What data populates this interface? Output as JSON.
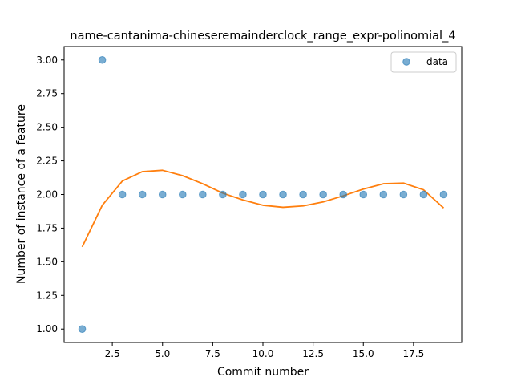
{
  "chart_data": {
    "type": "scatter",
    "title": "name-cantanima-chineseremainderclock_range_expr-polinomial_4",
    "xlabel": "Commit number",
    "ylabel": "Number of instance of a feature",
    "xlim": [
      0.1,
      19.9
    ],
    "ylim": [
      0.9,
      3.1
    ],
    "xticks": [
      "2.5",
      "5.0",
      "7.5",
      "10.0",
      "12.5",
      "15.0",
      "17.5"
    ],
    "yticks": [
      "1.00",
      "1.25",
      "1.50",
      "1.75",
      "2.00",
      "2.25",
      "2.50",
      "2.75",
      "3.00"
    ],
    "legend_position": "top-right",
    "grid": false,
    "series": [
      {
        "name": "data",
        "kind": "scatter",
        "color": "#1f77b4",
        "x": [
          1,
          2,
          3,
          4,
          5,
          6,
          7,
          8,
          9,
          10,
          11,
          12,
          13,
          14,
          15,
          16,
          17,
          18,
          19
        ],
        "y": [
          1,
          3,
          2,
          2,
          2,
          2,
          2,
          2,
          2,
          2,
          2,
          2,
          2,
          2,
          2,
          2,
          2,
          2,
          2
        ]
      },
      {
        "kind": "line",
        "color": "#ff7f0e",
        "x": [
          1,
          2,
          3,
          4,
          5,
          6,
          7,
          8,
          9,
          10,
          11,
          12,
          13,
          14,
          15,
          16,
          17,
          18,
          19
        ],
        "y": [
          1.61,
          1.92,
          2.1,
          2.17,
          2.18,
          2.14,
          2.08,
          2.01,
          1.96,
          1.92,
          1.905,
          1.915,
          1.945,
          1.99,
          2.04,
          2.08,
          2.085,
          2.035,
          1.9
        ]
      }
    ]
  }
}
